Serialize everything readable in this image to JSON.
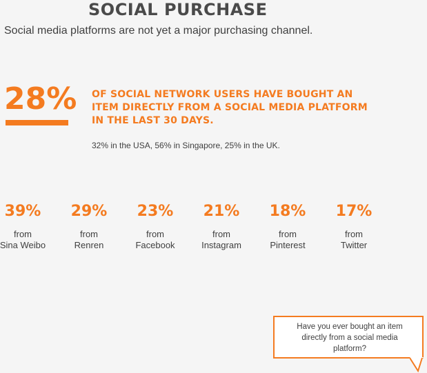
{
  "header": {
    "title": "SOCIAL PURCHASE",
    "subtitle": "Social media platforms are not yet a major purchasing channel."
  },
  "main_stat": {
    "value": "28%",
    "line1": "OF SOCIAL NETWORK USERS HAVE BOUGHT AN",
    "line2": "ITEM DIRECTLY FROM A SOCIAL MEDIA PLATFORM",
    "line3": "IN THE LAST 30 DAYS.",
    "note": "32% in the USA, 56% in Singapore, 25% in the UK."
  },
  "platforms": [
    {
      "pct": "39%",
      "from": "from",
      "name": "Sina Weibo"
    },
    {
      "pct": "29%",
      "from": "from",
      "name": "Renren"
    },
    {
      "pct": "23%",
      "from": "from",
      "name": "Facebook"
    },
    {
      "pct": "21%",
      "from": "from",
      "name": "Instagram"
    },
    {
      "pct": "18%",
      "from": "from",
      "name": "Pinterest"
    },
    {
      "pct": "17%",
      "from": "from",
      "name": "Twitter"
    }
  ],
  "question": {
    "line1": "Have you ever bought an item",
    "line2": "directly from a social media",
    "line3": "platform?"
  },
  "colors": {
    "accent": "#f47b20",
    "text": "#3f3f3f",
    "background": "#f5f5f5"
  }
}
